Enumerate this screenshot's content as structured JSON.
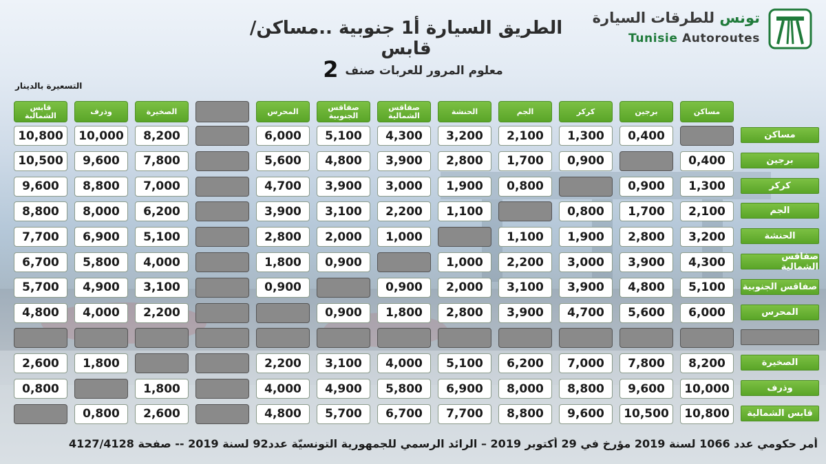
{
  "header": {
    "title": "الطريق السيارة أ1 جنوبية ..مساكن/قابس",
    "logo_ar_green": "تونس",
    "logo_ar_dark": " للطرقات السيارة",
    "logo_lat_green": "Tunisie",
    "logo_lat_dark": " Autoroutes",
    "subtitle": "معلوم المرور للعربات صنف",
    "vehicle_class": "2",
    "currency_note": "التسعيرة بالدينار"
  },
  "columns": [
    "مساكن",
    "برجين",
    "كركر",
    "الجم",
    "الحنشة",
    "صفاقس الشمالية",
    "صفاقس الجنوبية",
    "المحرس",
    "",
    "الصخيرة",
    "وذرف",
    "قابس الشمالية"
  ],
  "rows": [
    {
      "name": "مساكن",
      "values": [
        "",
        "0,400",
        "1,300",
        "2,100",
        "3,200",
        "4,300",
        "5,100",
        "6,000",
        "",
        "8,200",
        "10,000",
        "10,800"
      ]
    },
    {
      "name": "برجين",
      "values": [
        "0,400",
        "",
        "0,900",
        "1,700",
        "2,800",
        "3,900",
        "4,800",
        "5,600",
        "",
        "7,800",
        "9,600",
        "10,500"
      ]
    },
    {
      "name": "كركر",
      "values": [
        "1,300",
        "0,900",
        "",
        "0,800",
        "1,900",
        "3,000",
        "3,900",
        "4,700",
        "",
        "7,000",
        "8,800",
        "9,600"
      ]
    },
    {
      "name": "الجم",
      "values": [
        "2,100",
        "1,700",
        "0,800",
        "",
        "1,100",
        "2,200",
        "3,100",
        "3,900",
        "",
        "6,200",
        "8,000",
        "8,800"
      ]
    },
    {
      "name": "الحنشة",
      "values": [
        "3,200",
        "2,800",
        "1,900",
        "1,100",
        "",
        "1,000",
        "2,000",
        "2,800",
        "",
        "5,100",
        "6,900",
        "7,700"
      ]
    },
    {
      "name": "صفاقس الشمالية",
      "values": [
        "4,300",
        "3,900",
        "3,000",
        "2,200",
        "1,000",
        "",
        "0,900",
        "1,800",
        "",
        "4,000",
        "5,800",
        "6,700"
      ]
    },
    {
      "name": "صفاقس الجنوبية",
      "values": [
        "5,100",
        "4,800",
        "3,900",
        "3,100",
        "2,000",
        "0,900",
        "",
        "0,900",
        "",
        "3,100",
        "4,900",
        "5,700"
      ]
    },
    {
      "name": "المحرس",
      "values": [
        "6,000",
        "5,600",
        "4,700",
        "3,900",
        "2,800",
        "1,800",
        "0,900",
        "",
        "",
        "2,200",
        "4,000",
        "4,800"
      ]
    },
    {
      "name": "",
      "values": [
        "",
        "",
        "",
        "",
        "",
        "",
        "",
        "",
        "",
        "",
        "",
        ""
      ]
    },
    {
      "name": "الصخيرة",
      "values": [
        "8,200",
        "7,800",
        "7,000",
        "6,200",
        "5,100",
        "4,000",
        "3,100",
        "2,200",
        "",
        "",
        "1,800",
        "2,600"
      ]
    },
    {
      "name": "وذرف",
      "values": [
        "10,000",
        "9,600",
        "8,800",
        "8,000",
        "6,900",
        "5,800",
        "4,900",
        "4,000",
        "",
        "1,800",
        "",
        "0,800"
      ]
    },
    {
      "name": "قابس الشمالية",
      "values": [
        "10,800",
        "10,500",
        "9,600",
        "8,800",
        "7,700",
        "6,700",
        "5,700",
        "4,800",
        "",
        "2,600",
        "0,800",
        ""
      ]
    }
  ],
  "footer": "أمر حكومي عدد 1066 لسنة 2019 مؤرخ في 29 أكتوبر 2019 – الرائد الرسمي للجمهورية التونسيّة عدد92 لسنة 2019 -- صفحة 4127/4128",
  "colors": {
    "header_green": "#5aa528",
    "empty_gray": "#8a8a8a",
    "brand_green": "#1f7a3a"
  }
}
